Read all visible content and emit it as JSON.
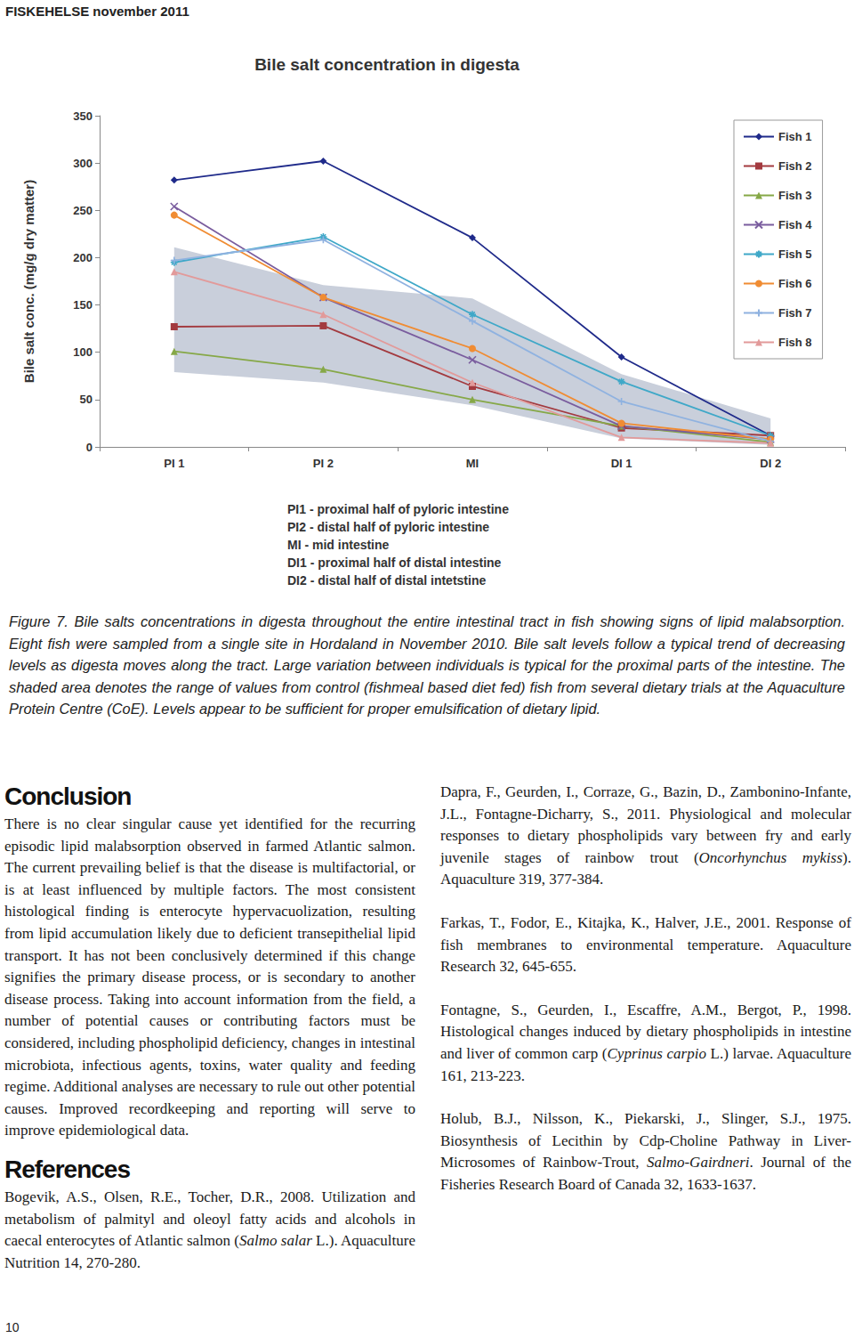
{
  "header": "FISKEHELSE november 2011",
  "chart_data": {
    "type": "line",
    "title": "Bile salt concentration in digesta",
    "y_label": "Bile salt conc. (mg/g dry matter)",
    "categories": [
      "PI 1",
      "PI 2",
      "MI",
      "DI 1",
      "DI 2"
    ],
    "series": [
      {
        "name": "Fish 1",
        "color": "#1f2a8a",
        "marker": "diamond",
        "values": [
          282,
          302,
          221,
          95,
          12
        ]
      },
      {
        "name": "Fish 2",
        "color": "#a33a3f",
        "marker": "square",
        "values": [
          127,
          128,
          64,
          20,
          12
        ]
      },
      {
        "name": "Fish 3",
        "color": "#86a847",
        "marker": "triangle",
        "values": [
          101,
          82,
          50,
          22,
          5
        ]
      },
      {
        "name": "Fish 4",
        "color": "#7a5d9e",
        "marker": "x",
        "values": [
          254,
          158,
          92,
          22,
          8
        ]
      },
      {
        "name": "Fish 5",
        "color": "#3fa8c8",
        "marker": "star",
        "values": [
          195,
          222,
          140,
          69,
          12
        ]
      },
      {
        "name": "Fish 6",
        "color": "#f08c33",
        "marker": "circle",
        "values": [
          245,
          158,
          104,
          25,
          8
        ]
      },
      {
        "name": "Fish 7",
        "color": "#8fb2e0",
        "marker": "plus",
        "values": [
          197,
          219,
          133,
          48,
          6
        ]
      },
      {
        "name": "Fish 8",
        "color": "#e29a9a",
        "marker": "triangle",
        "values": [
          185,
          140,
          68,
          10,
          4
        ]
      }
    ],
    "control_range": {
      "color": "#c9cfdb",
      "lower": [
        79,
        68,
        44,
        9,
        2
      ],
      "upper": [
        211,
        171,
        157,
        77,
        30
      ]
    },
    "ylim": [
      0,
      350
    ],
    "yticks": [
      0,
      50,
      100,
      150,
      200,
      250,
      300,
      350
    ],
    "grid": false,
    "legend": "upper right"
  },
  "chart_notes": [
    "PI1 - proximal half of pyloric intestine",
    "PI2 - distal half of pyloric intestine",
    "MI - mid intestine",
    "DI1 - proximal half of distal intestine",
    "DI2 - distal half of distal intetstine"
  ],
  "caption": "Figure 7. Bile salts concentrations in digesta throughout the entire intestinal tract in fish showing signs of lipid malabsorption. Eight fish were sampled from a single site in Hordaland in November 2010. Bile salt levels follow a typical trend of decreasing levels as digesta moves along the tract. Large variation between individuals is typical for the proximal parts of the intestine. The shaded area denotes the range of values from control (fishmeal based diet fed) fish from several dietary trials at the Aquaculture Protein Centre (CoE). Levels appear to be sufficient for proper emulsification of dietary lipid.",
  "conclusion": {
    "heading": "Conclusion",
    "text": "There is no clear singular cause yet identified for the recurring episodic lipid malabsorption observed in farmed Atlantic salmon. The current prevailing belief is that the disease is multifactorial, or is at least influenced by multiple factors. The most consistent histological finding is enterocyte hypervacuolization, resulting from lipid accumulation likely due to deficient transepithelial lipid transport. It has not been conclusively determined if this change signifies the primary disease process, or is secondary to another disease process. Taking into account information from the field, a number of potential causes or contributing factors must be considered, including phospholipid deficiency, changes in intestinal microbiota, infectious agents, toxins, water quality and feeding regime. Additional analyses are necessary to rule out other potential causes. Improved recordkeeping and reporting will serve to improve epidemiological data."
  },
  "references": {
    "heading": "References",
    "items": [
      [
        "Bogevik, A.S., Olsen, R.E., Tocher, D.R., 2008. Utilization and metabolism of palmityl and oleoyl fatty acids and alcohols in caecal enterocytes of Atlantic salmon (",
        {
          "italic": "Salmo salar"
        },
        " L.). Aquaculture Nutrition 14, 270-280."
      ],
      [
        "Dapra, F., Geurden, I., Corraze, G., Bazin, D., Zambonino-Infante, J.L., Fontagne-Dicharry, S., 2011. Physiological and molecular responses to dietary phospholipids vary between fry and early juvenile stages of rainbow trout (",
        {
          "italic": "Oncorhynchus mykiss"
        },
        "). Aquaculture 319, 377-384."
      ],
      [
        "Farkas, T., Fodor, E., Kitajka, K., Halver, J.E., 2001. Response of fish membranes to environmental temperature. Aquaculture Research 32, 645-655."
      ],
      [
        "Fontagne, S., Geurden, I., Escaffre, A.M., Bergot, P., 1998. Histological changes induced by dietary phospholipids in intestine and liver of common carp (",
        {
          "italic": "Cyprinus carpio"
        },
        " L.) larvae. Aquaculture 161, 213-223."
      ],
      [
        "Holub, B.J., Nilsson, K., Piekarski, J., Slinger, S.J., 1975. Biosynthesis of Lecithin by Cdp-Choline Pathway in Liver-Microsomes of Rainbow-Trout, ",
        {
          "italic": "Salmo-Gairdneri"
        },
        ". Journal of the Fisheries Research Board of Canada 32, 1633-1637."
      ]
    ]
  },
  "page_number": "10"
}
